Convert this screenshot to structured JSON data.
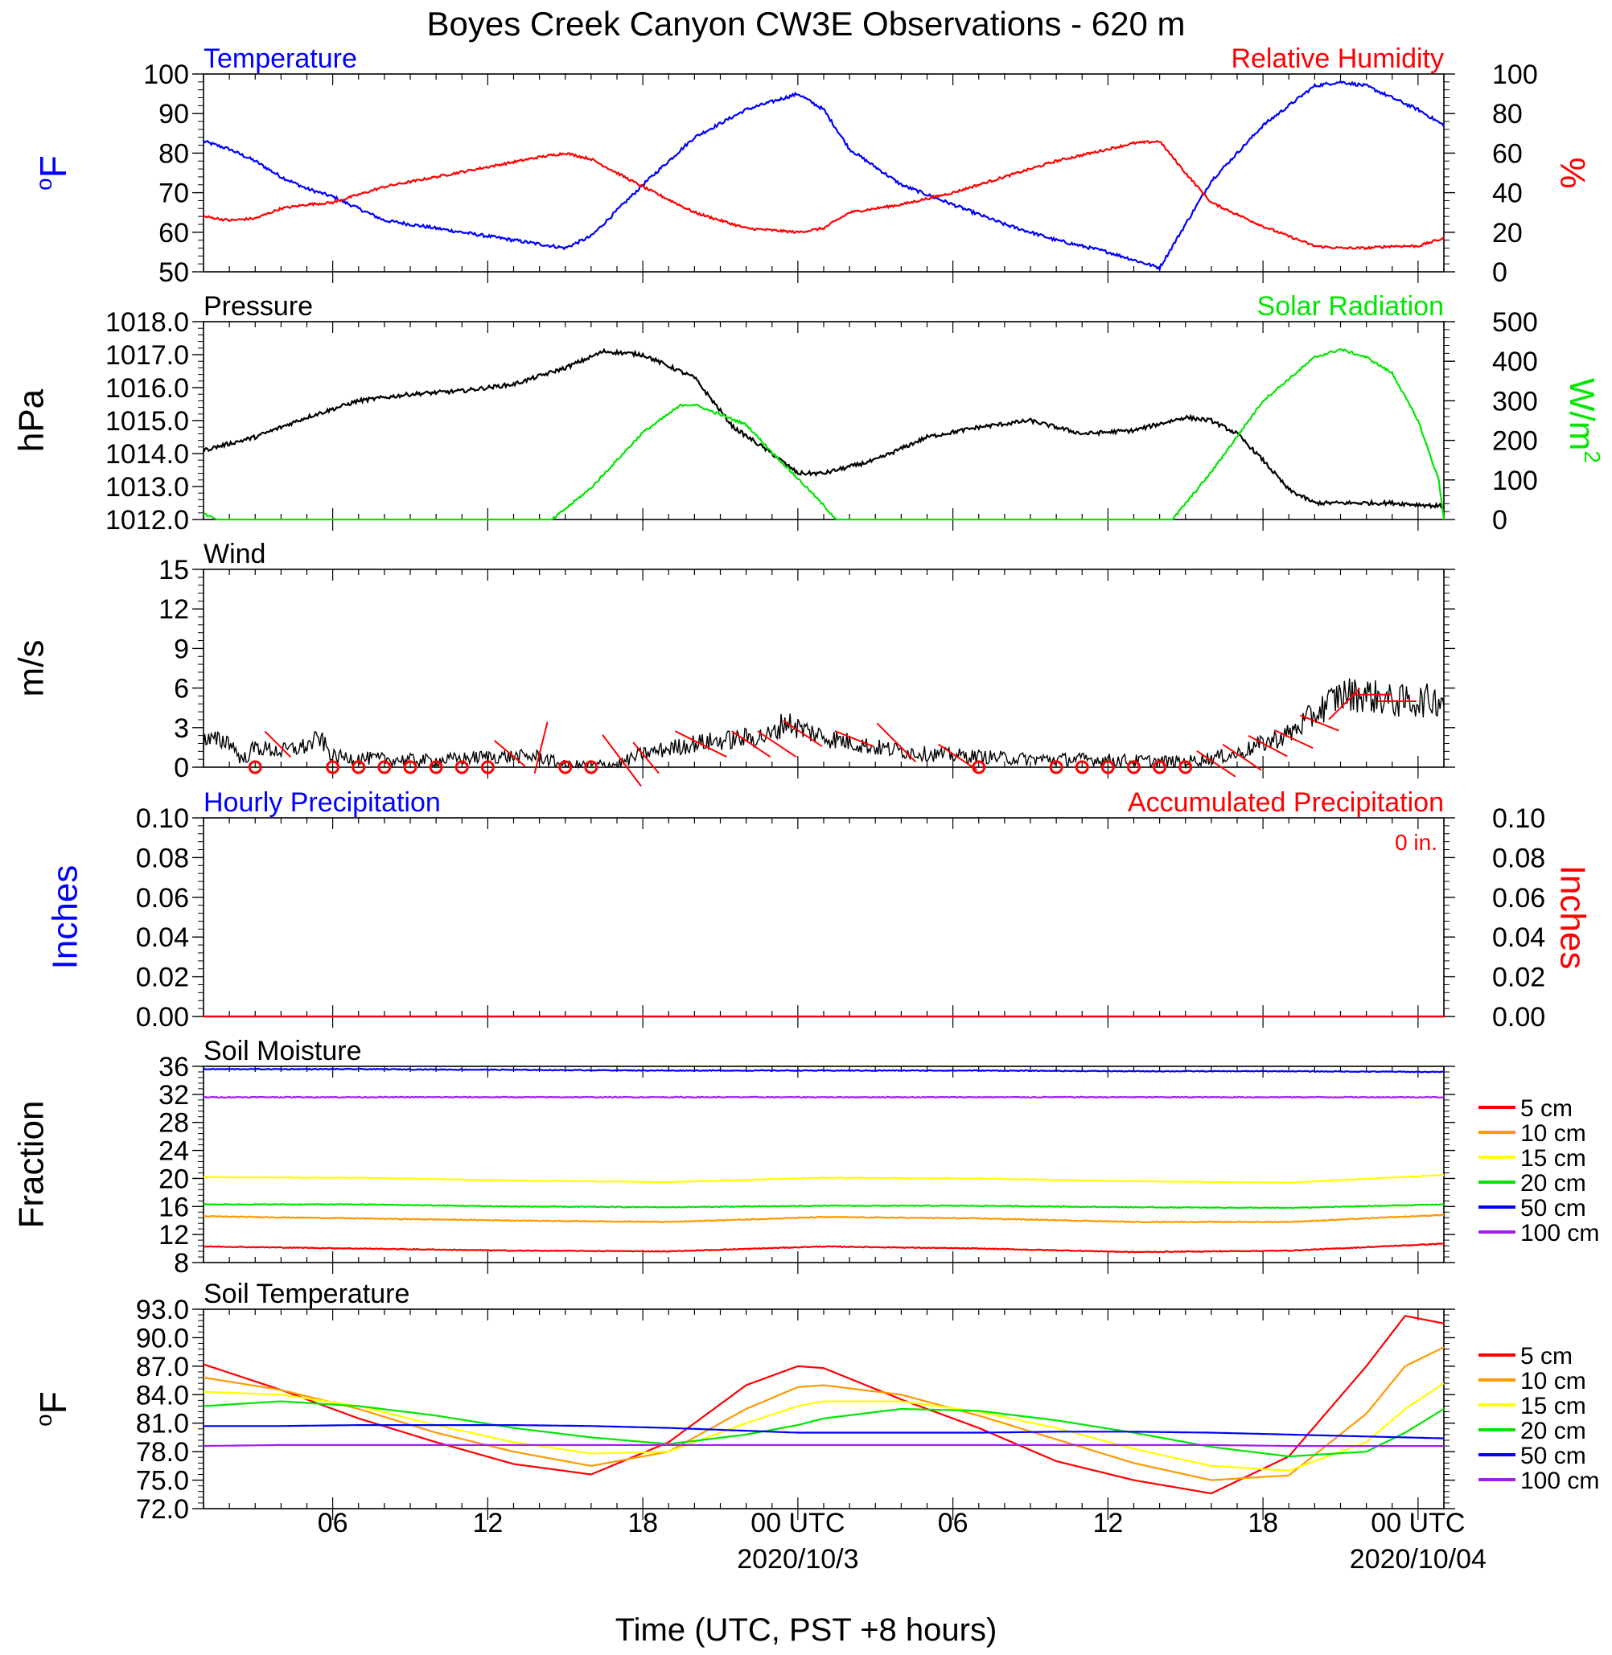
{
  "title": "Boyes Creek Canyon CW3E Observations - 620 m",
  "xlabel": "Time (UTC, PST +8 hours)",
  "x_ticks": [
    {
      "h": 6,
      "label": "06",
      "sub": ""
    },
    {
      "h": 12,
      "label": "12",
      "sub": ""
    },
    {
      "h": 18,
      "label": "18",
      "sub": ""
    },
    {
      "h": 24,
      "label": "00 UTC",
      "sub": "2020/10/3"
    },
    {
      "h": 30,
      "label": "06",
      "sub": ""
    },
    {
      "h": 36,
      "label": "12",
      "sub": ""
    },
    {
      "h": 42,
      "label": "18",
      "sub": ""
    },
    {
      "h": 48,
      "label": "00 UTC",
      "sub": "2020/10/04"
    }
  ],
  "colors": {
    "blue": "#0000ff",
    "red": "#ff0000",
    "green": "#00e600",
    "black": "#000000",
    "orange": "#ff9900",
    "yellow": "#ffff00",
    "purple": "#a020f0"
  },
  "chart_data": [
    {
      "type": "line",
      "title_left": "Temperature",
      "title_right": "Relative Humidity",
      "ylabel": "oF",
      "ylabel_right": "%",
      "ylim": [
        50,
        100
      ],
      "ylim_right": [
        0,
        100
      ],
      "yticks": [
        "50",
        "60",
        "70",
        "80",
        "90",
        "100"
      ],
      "yticks_right": [
        "0",
        "20",
        "40",
        "60",
        "80",
        "100"
      ],
      "x_hours": [
        1,
        2,
        3,
        4,
        5,
        6,
        8,
        10,
        12,
        14,
        15,
        16,
        18,
        20,
        22,
        24,
        25,
        26,
        28,
        30,
        32,
        34,
        36,
        37,
        38,
        39,
        40,
        42,
        44,
        45,
        46,
        47,
        48,
        49
      ],
      "series": [
        {
          "name": "Temperature",
          "axis": "left",
          "color": "#0000ff",
          "values": [
            83,
            81,
            78,
            74,
            71,
            69,
            63,
            61,
            59,
            57,
            56,
            59,
            72,
            84,
            91,
            95,
            91,
            81,
            72,
            67,
            62,
            58,
            55,
            53,
            51,
            62,
            73,
            87,
            97,
            98,
            97,
            94,
            91,
            87
          ]
        },
        {
          "name": "Relative Humidity",
          "axis": "right",
          "color": "#ff0000",
          "values": [
            28,
            26,
            27,
            32,
            34,
            35,
            43,
            48,
            53,
            58,
            60,
            57,
            43,
            30,
            22,
            20,
            22,
            30,
            34,
            40,
            48,
            56,
            62,
            65,
            66,
            50,
            35,
            23,
            13,
            12,
            12,
            13,
            13,
            17
          ]
        }
      ]
    },
    {
      "type": "line",
      "title_left": "Pressure",
      "title_right": "Solar Radiation",
      "ylabel": "hPa",
      "ylabel_right": "W/m2",
      "ylim": [
        1012.0,
        1018.0
      ],
      "ylim_right": [
        0,
        500
      ],
      "yticks": [
        "1012.0",
        "1013.0",
        "1014.0",
        "1015.0",
        "1016.0",
        "1017.0",
        "1018.0"
      ],
      "yticks_right": [
        "0",
        "100",
        "200",
        "300",
        "400",
        "500"
      ],
      "series": [
        {
          "name": "Pressure",
          "axis": "left",
          "color": "#000000",
          "x_hours": [
            1,
            3,
            5,
            7,
            9,
            11,
            13,
            15,
            16.5,
            18,
            20,
            21.5,
            23,
            24,
            25,
            27,
            29,
            31,
            33,
            35,
            37,
            38,
            39,
            40,
            41,
            42,
            43,
            44,
            45,
            47,
            49
          ],
          "values": [
            1014.1,
            1014.5,
            1015.1,
            1015.6,
            1015.8,
            1015.9,
            1016.1,
            1016.6,
            1017.1,
            1017.0,
            1016.3,
            1014.8,
            1014.0,
            1013.4,
            1013.4,
            1013.8,
            1014.5,
            1014.8,
            1015.0,
            1014.6,
            1014.7,
            1014.9,
            1015.1,
            1015.0,
            1014.6,
            1013.8,
            1012.9,
            1012.5,
            1012.5,
            1012.5,
            1012.4
          ]
        },
        {
          "name": "Solar Radiation",
          "axis": "right",
          "color": "#00e600",
          "x_hours": [
            1,
            1.5,
            14.5,
            16,
            18,
            19.5,
            20,
            21,
            22,
            23,
            24.5,
            25.5,
            26,
            38.5,
            40,
            42,
            44,
            45,
            46,
            47,
            48,
            48.8,
            49
          ],
          "values": [
            15,
            0,
            0,
            80,
            220,
            290,
            290,
            265,
            240,
            170,
            70,
            0,
            0,
            0,
            120,
            300,
            410,
            430,
            410,
            370,
            250,
            100,
            0
          ]
        }
      ]
    },
    {
      "type": "line",
      "title_left": "Wind",
      "ylabel": "m/s",
      "ylim": [
        0,
        15
      ],
      "yticks": [
        "0",
        "3",
        "6",
        "9",
        "12",
        "15"
      ],
      "x_hours": [
        1,
        2,
        2.5,
        3,
        4,
        5,
        5.5,
        6,
        8,
        10,
        12,
        14,
        15,
        17,
        18,
        20,
        22,
        23,
        23.5,
        24,
        25,
        27,
        29,
        31,
        33,
        35,
        37,
        39,
        41,
        42,
        43,
        44,
        44.5,
        45,
        46,
        47,
        48,
        49
      ],
      "series": [
        {
          "name": "Wind speed",
          "color": "#000000",
          "values": [
            2.0,
            2.0,
            0.5,
            1.5,
            1.2,
            1.6,
            2.2,
            0.8,
            0.6,
            0.5,
            0.8,
            0.8,
            0.1,
            0.2,
            1.0,
            1.8,
            2.2,
            2.4,
            3.5,
            3.0,
            2.3,
            1.5,
            1.0,
            0.8,
            0.6,
            0.6,
            0.5,
            0.4,
            1.0,
            1.8,
            2.5,
            4.0,
            4.8,
            5.5,
            5.5,
            5.0,
            5.0,
            5.2
          ]
        }
      ],
      "calm_hours": [
        3,
        6,
        7,
        8,
        9,
        10,
        11,
        12,
        15,
        16,
        31,
        34,
        35,
        36,
        37,
        38,
        39
      ],
      "barbs": [
        {
          "h": 4,
          "speed": 1.5,
          "dx": -1.0,
          "dy": 1.0
        },
        {
          "h": 13,
          "speed": 0.8,
          "dx": -1.2,
          "dy": 1.0
        },
        {
          "h": 14,
          "speed": 1.0,
          "dx": 0.5,
          "dy": 2.0
        },
        {
          "h": 17,
          "speed": 1.0,
          "dx": 1.5,
          "dy": -2.0
        },
        {
          "h": 18,
          "speed": 1.0,
          "dx": 1.0,
          "dy": -1.2
        },
        {
          "h": 20,
          "speed": 2.0,
          "dx": 2.0,
          "dy": -1.0
        },
        {
          "h": 22,
          "speed": 2.0,
          "dx": 1.5,
          "dy": -1.0
        },
        {
          "h": 23,
          "speed": 2.0,
          "dx": 1.5,
          "dy": -1.0
        },
        {
          "h": 24,
          "speed": 2.8,
          "dx": 1.5,
          "dy": -1.0
        },
        {
          "h": 26,
          "speed": 2.3,
          "dx": 1.5,
          "dy": -0.6
        },
        {
          "h": 28,
          "speed": 1.5,
          "dx": -1.5,
          "dy": 1.5
        },
        {
          "h": 30,
          "speed": 1.0,
          "dx": 1.5,
          "dy": -1.0
        },
        {
          "h": 40,
          "speed": 0.5,
          "dx": 1.5,
          "dy": -1.0
        },
        {
          "h": 41,
          "speed": 1.0,
          "dx": 1.5,
          "dy": -1.0
        },
        {
          "h": 42,
          "speed": 1.8,
          "dx": 1.5,
          "dy": -0.8
        },
        {
          "h": 43,
          "speed": 2.3,
          "dx": 1.5,
          "dy": -0.7
        },
        {
          "h": 44,
          "speed": 3.5,
          "dx": 1.5,
          "dy": -0.6
        },
        {
          "h": 45,
          "speed": 4.5,
          "dx": 1.2,
          "dy": 1.2
        },
        {
          "h": 46,
          "speed": 5.5,
          "dx": 1.5,
          "dy": 0.0
        },
        {
          "h": 47,
          "speed": 5.0,
          "dx": 1.5,
          "dy": 0.0
        }
      ]
    },
    {
      "type": "line",
      "title_left": "Hourly Precipitation",
      "title_right": "Accumulated Precipitation",
      "annotation": "0 in.",
      "ylabel": "Inches",
      "ylabel_right": "Inches",
      "ylim": [
        0,
        0.1
      ],
      "ylim_right": [
        0,
        0.1
      ],
      "yticks": [
        "0.00",
        "0.02",
        "0.04",
        "0.06",
        "0.08",
        "0.10"
      ],
      "yticks_right": [
        "0.00",
        "0.02",
        "0.04",
        "0.06",
        "0.08",
        "0.10"
      ],
      "x_hours": [
        1,
        49
      ],
      "series": [
        {
          "name": "Hourly Precipitation",
          "axis": "left",
          "color": "#0000ff",
          "values": [
            0,
            0
          ]
        },
        {
          "name": "Accumulated Precipitation",
          "axis": "right",
          "color": "#ff0000",
          "values": [
            0,
            0
          ]
        }
      ]
    },
    {
      "type": "line",
      "title_left": "Soil Moisture",
      "ylabel": "Fraction",
      "ylim": [
        8,
        36
      ],
      "yticks": [
        "8",
        "12",
        "16",
        "20",
        "24",
        "28",
        "32",
        "36"
      ],
      "x_hours": [
        1,
        7,
        13,
        19,
        25,
        31,
        37,
        43,
        49
      ],
      "series": [
        {
          "name": "5 cm",
          "color": "#ff0000",
          "values": [
            10.3,
            10.0,
            9.7,
            9.6,
            10.3,
            10.0,
            9.5,
            9.7,
            10.7
          ]
        },
        {
          "name": "10 cm",
          "color": "#ff9900",
          "values": [
            14.6,
            14.3,
            14.0,
            13.8,
            14.5,
            14.3,
            13.8,
            13.8,
            14.8
          ]
        },
        {
          "name": "15 cm",
          "color": "#ffff00",
          "values": [
            20.2,
            20.1,
            19.7,
            19.5,
            20.1,
            20.0,
            19.6,
            19.4,
            20.5
          ]
        },
        {
          "name": "20 cm",
          "color": "#00e600",
          "values": [
            16.3,
            16.3,
            16.0,
            15.9,
            16.1,
            16.1,
            15.9,
            15.8,
            16.3
          ]
        },
        {
          "name": "50 cm",
          "color": "#0000ff",
          "values": [
            35.6,
            35.6,
            35.5,
            35.4,
            35.4,
            35.4,
            35.3,
            35.3,
            35.2
          ]
        },
        {
          "name": "100 cm",
          "color": "#a020f0",
          "values": [
            31.6,
            31.6,
            31.6,
            31.6,
            31.6,
            31.6,
            31.6,
            31.6,
            31.6
          ]
        }
      ]
    },
    {
      "type": "line",
      "title_left": "Soil Temperature",
      "ylabel": "oF",
      "ylim": [
        72.0,
        93.0
      ],
      "yticks": [
        "72.0",
        "75.0",
        "78.0",
        "81.0",
        "84.0",
        "87.0",
        "90.0",
        "93.0"
      ],
      "x_hours": [
        1,
        4,
        7,
        10,
        13,
        16,
        19,
        22,
        24,
        25,
        28,
        31,
        34,
        37,
        40,
        43,
        46,
        47.5,
        49
      ],
      "series": [
        {
          "name": "5 cm",
          "color": "#ff0000",
          "values": [
            87.2,
            84.5,
            81.5,
            79.0,
            76.7,
            75.6,
            79.0,
            85.0,
            87.0,
            86.8,
            83.5,
            80.5,
            77.0,
            75.0,
            73.6,
            77.5,
            87.0,
            92.3,
            91.5
          ]
        },
        {
          "name": "10 cm",
          "color": "#ff9900",
          "values": [
            85.8,
            84.5,
            82.5,
            80.0,
            78.0,
            76.5,
            78.0,
            82.5,
            84.8,
            85.0,
            84.0,
            81.8,
            79.3,
            76.8,
            75.0,
            75.5,
            82.0,
            87.0,
            89.0
          ]
        },
        {
          "name": "15 cm",
          "color": "#ffff00",
          "values": [
            84.3,
            84.0,
            82.8,
            80.8,
            79.0,
            77.8,
            78.0,
            81.0,
            82.8,
            83.3,
            83.3,
            82.2,
            80.5,
            78.3,
            76.5,
            76.0,
            79.0,
            82.5,
            85.2
          ]
        },
        {
          "name": "20 cm",
          "color": "#00e600",
          "values": [
            82.8,
            83.3,
            82.8,
            81.8,
            80.5,
            79.5,
            78.8,
            79.8,
            80.8,
            81.5,
            82.5,
            82.3,
            81.3,
            80.0,
            78.5,
            77.5,
            78.0,
            80.0,
            82.5
          ]
        },
        {
          "name": "50 cm",
          "color": "#0000ff",
          "values": [
            80.7,
            80.7,
            80.8,
            80.8,
            80.8,
            80.7,
            80.5,
            80.2,
            80.0,
            80.0,
            80.0,
            80.0,
            80.1,
            80.1,
            80.0,
            79.8,
            79.6,
            79.5,
            79.4
          ]
        },
        {
          "name": "100 cm",
          "color": "#a020f0",
          "values": [
            78.6,
            78.7,
            78.7,
            78.7,
            78.7,
            78.7,
            78.7,
            78.7,
            78.7,
            78.7,
            78.7,
            78.7,
            78.7,
            78.7,
            78.7,
            78.6,
            78.6,
            78.6,
            78.6
          ]
        }
      ]
    }
  ]
}
